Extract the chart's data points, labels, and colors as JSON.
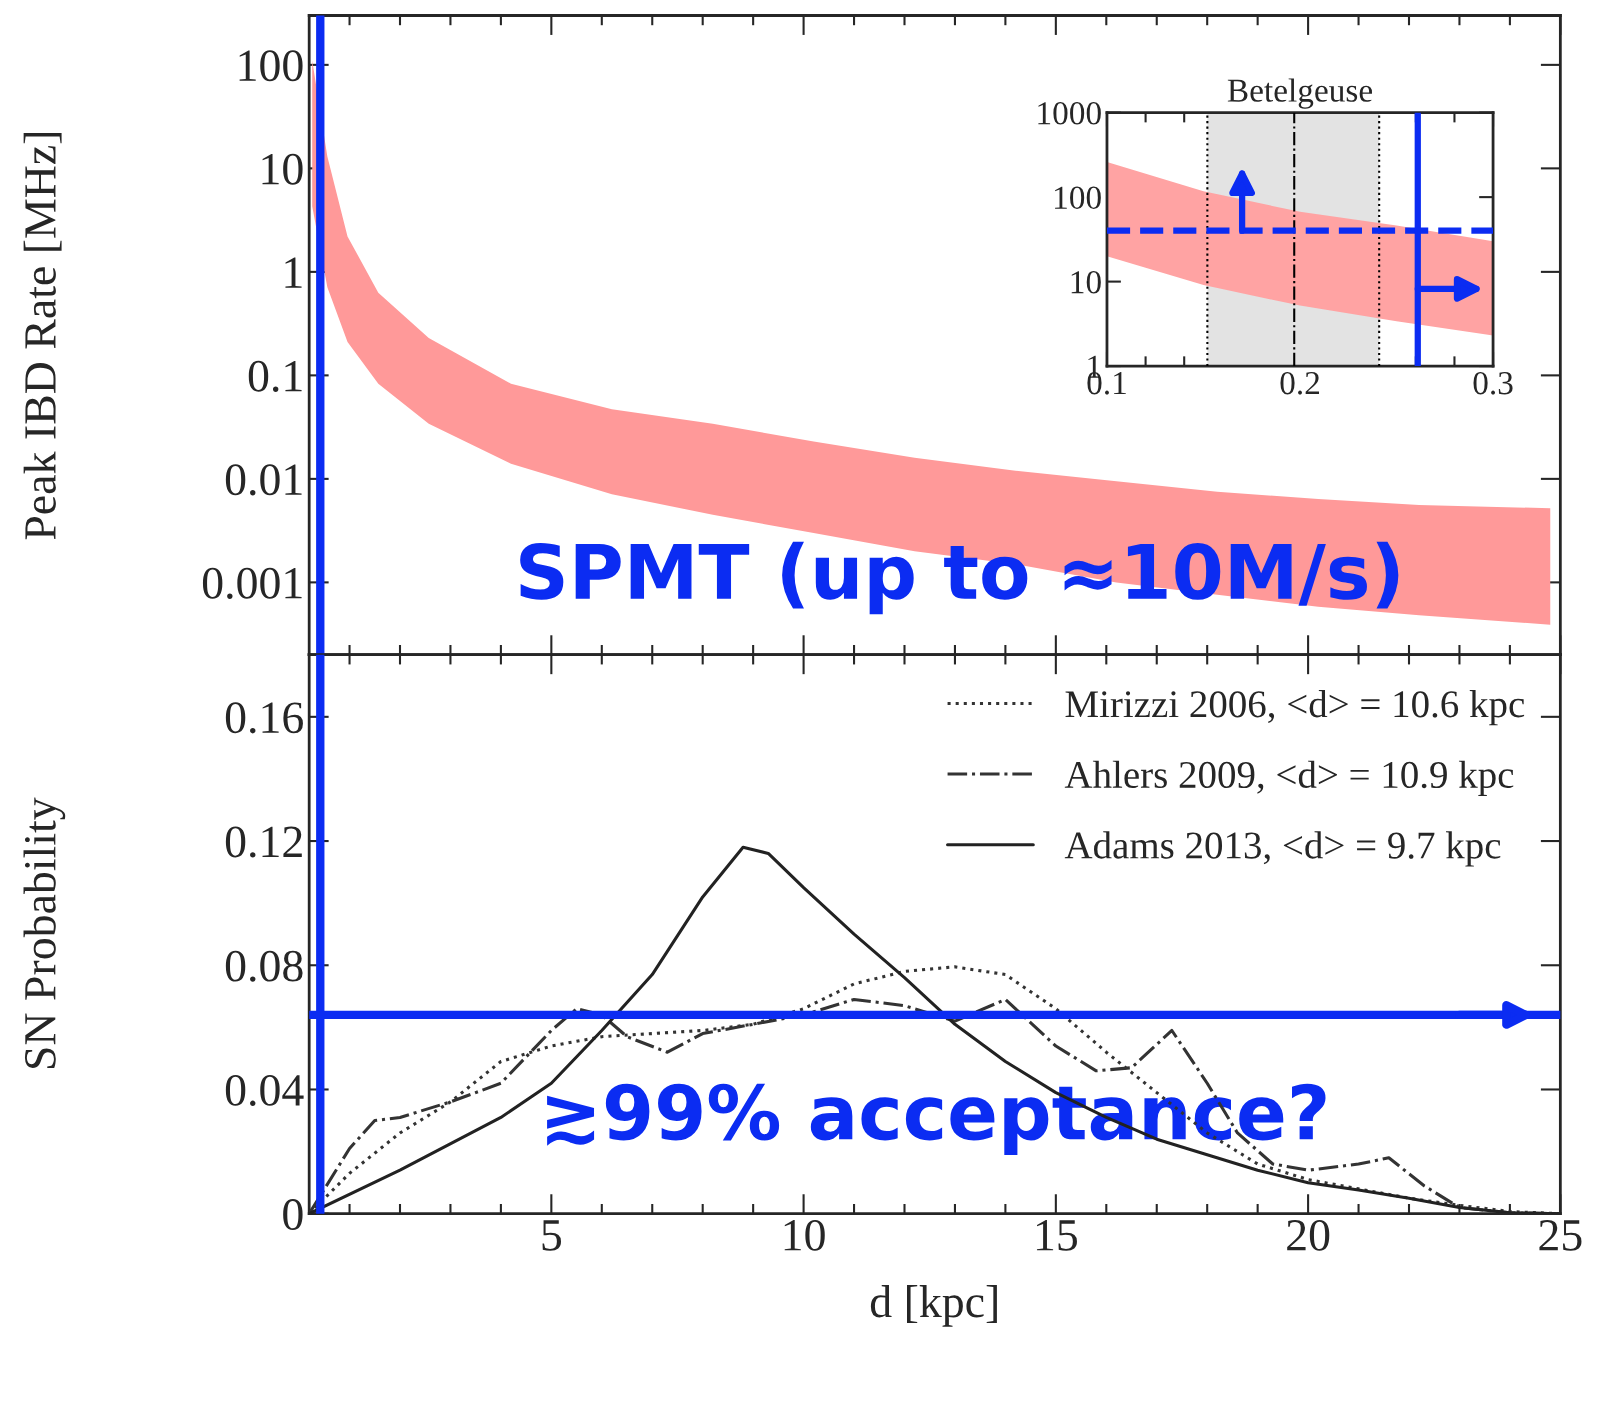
{
  "chart_data": [
    {
      "type": "area",
      "ylabel": "Peak IBD Rate [MHz]",
      "log": "y",
      "xlim": [
        0.2,
        25
      ],
      "xticks": [
        5,
        10,
        15,
        20,
        25
      ],
      "ylim": [
        0.0002,
        300
      ],
      "yticks": [
        0.001,
        0.01,
        0.1,
        1,
        10,
        100
      ],
      "tick_labels": "y",
      "series": [
        {
          "color": "#ff9999",
          "x": [
            0.26,
            0.56,
            0.96,
            1.57,
            2.57,
            4.2,
            6.2,
            8.2,
            10.2,
            12.2,
            14.2,
            16.2,
            18.2,
            20.2,
            22.2,
            24.8
          ],
          "values": [
            null,
            null,
            null,
            null,
            null,
            null,
            null,
            null,
            null,
            null,
            null,
            null,
            null,
            null,
            null,
            null
          ],
          "upper": [
            110,
            13,
            2.2,
            0.63,
            0.23,
            0.083,
            0.047,
            0.034,
            0.023,
            0.016,
            0.012,
            0.0095,
            0.0075,
            0.0064,
            0.0056,
            0.0052
          ],
          "lower": [
            4.3,
            0.71,
            0.21,
            0.083,
            0.034,
            0.014,
            0.0071,
            0.0045,
            0.003,
            0.002,
            0.0015,
            0.001,
            0.00076,
            0.00058,
            0.00048,
            0.00039
          ]
        }
      ],
      "ref_lines": [
        {
          "axis": "x",
          "value": 0.42,
          "color": "#0b2cf2"
        }
      ],
      "annotations": [
        "SPMT (up to ≈10M/s)"
      ]
    },
    {
      "type": "area",
      "title": "Betelgeuse",
      "log": "y",
      "xlim": [
        0.1,
        0.3
      ],
      "xticks": [
        0.1,
        0.2,
        0.3
      ],
      "ylim": [
        1,
        1000
      ],
      "yticks": [
        1,
        10,
        100,
        1000
      ],
      "series": [
        {
          "color": "#ffa3a3",
          "x": [
            0.1,
            0.15,
            0.2,
            0.25,
            0.3
          ],
          "values": [
            null,
            null,
            null,
            null,
            null
          ],
          "upper": [
            260,
            117,
            67,
            46,
            30
          ],
          "lower": [
            20,
            9.1,
            5.2,
            3.4,
            2.3
          ]
        }
      ],
      "bands": [
        {
          "axis": "x",
          "from": 0.152,
          "to": 0.241,
          "color": "#e3e3e3"
        }
      ],
      "ref_lines": [
        {
          "axis": "x",
          "value": 0.152,
          "line_style": "dotted"
        },
        {
          "axis": "x",
          "value": 0.197,
          "line_style": "dashdot"
        },
        {
          "axis": "x",
          "value": 0.241,
          "line_style": "dotted"
        },
        {
          "axis": "y",
          "value": 40,
          "color": "#0b2cf2",
          "line_style": "dashed"
        },
        {
          "axis": "x",
          "value": 0.261,
          "color": "#0b2cf2",
          "line_style": "solid"
        }
      ]
    },
    {
      "type": "line",
      "xlabel": "d [kpc]",
      "ylabel": "SN Probability",
      "xlim": [
        0.2,
        25
      ],
      "xticks": [
        5,
        10,
        15,
        20,
        25
      ],
      "ylim": [
        0,
        0.18
      ],
      "yticks": [
        0,
        0.04,
        0.08,
        0.12,
        0.16
      ],
      "legend": "top right",
      "series": [
        {
          "name": "Mirizzi 2006, <d> = 10.6 kpc",
          "color": "#333333",
          "line_style": "dotted",
          "x": [
            0.2,
            1,
            2,
            3,
            4,
            5,
            6,
            7,
            8,
            9,
            10,
            11,
            12,
            13,
            14,
            15,
            16,
            17,
            18,
            19,
            20,
            21,
            22,
            23,
            24,
            25
          ],
          "values": [
            0,
            0.013,
            0.026,
            0.036,
            0.049,
            0.054,
            0.057,
            0.058,
            0.059,
            0.061,
            0.066,
            0.074,
            0.078,
            0.0795,
            0.077,
            0.066,
            0.052,
            0.039,
            0.026,
            0.016,
            0.011,
            0.008,
            0.005,
            0.0027,
            0.0007,
            0
          ]
        },
        {
          "name": "Ahlers 2009, <d> = 10.9 kpc",
          "color": "#333333",
          "line_style": "dashdot",
          "x": [
            0.2,
            1,
            1.5,
            2,
            3,
            4,
            5,
            5.5,
            6,
            6.5,
            7.3,
            8,
            9,
            10,
            11,
            12,
            13,
            14,
            15,
            15.8,
            16.5,
            17.3,
            18,
            18.6,
            19.3,
            20,
            21,
            21.6,
            22.3,
            23,
            24,
            25
          ],
          "values": [
            0,
            0.021,
            0.03,
            0.031,
            0.036,
            0.042,
            0.059,
            0.066,
            0.064,
            0.057,
            0.052,
            0.058,
            0.061,
            0.064,
            0.069,
            0.067,
            0.062,
            0.069,
            0.054,
            0.046,
            0.047,
            0.059,
            0.042,
            0.026,
            0.016,
            0.014,
            0.016,
            0.018,
            0.009,
            0.002,
            0.0003,
            0
          ]
        },
        {
          "name": "Adams 2013, <d> = 9.7 kpc",
          "color": "#222222",
          "line_style": "solid",
          "x": [
            0.2,
            2,
            4,
            5,
            6,
            7,
            8,
            8.8,
            9.3,
            10,
            11,
            12,
            13,
            14,
            15,
            16,
            17,
            18,
            19,
            20,
            21,
            22,
            23,
            24,
            25
          ],
          "values": [
            0,
            0.014,
            0.031,
            0.042,
            0.059,
            0.077,
            0.102,
            0.118,
            0.116,
            0.105,
            0.09,
            0.076,
            0.061,
            0.049,
            0.039,
            0.031,
            0.024,
            0.019,
            0.014,
            0.01,
            0.0076,
            0.005,
            0.002,
            0.0003,
            0
          ]
        }
      ],
      "ref_lines": [
        {
          "axis": "x",
          "value": 0.42,
          "color": "#0b2cf2"
        },
        {
          "axis": "y",
          "value": 0.064,
          "color": "#0b2cf2"
        }
      ],
      "annotations": [
        "≳99% acceptance?"
      ]
    }
  ]
}
